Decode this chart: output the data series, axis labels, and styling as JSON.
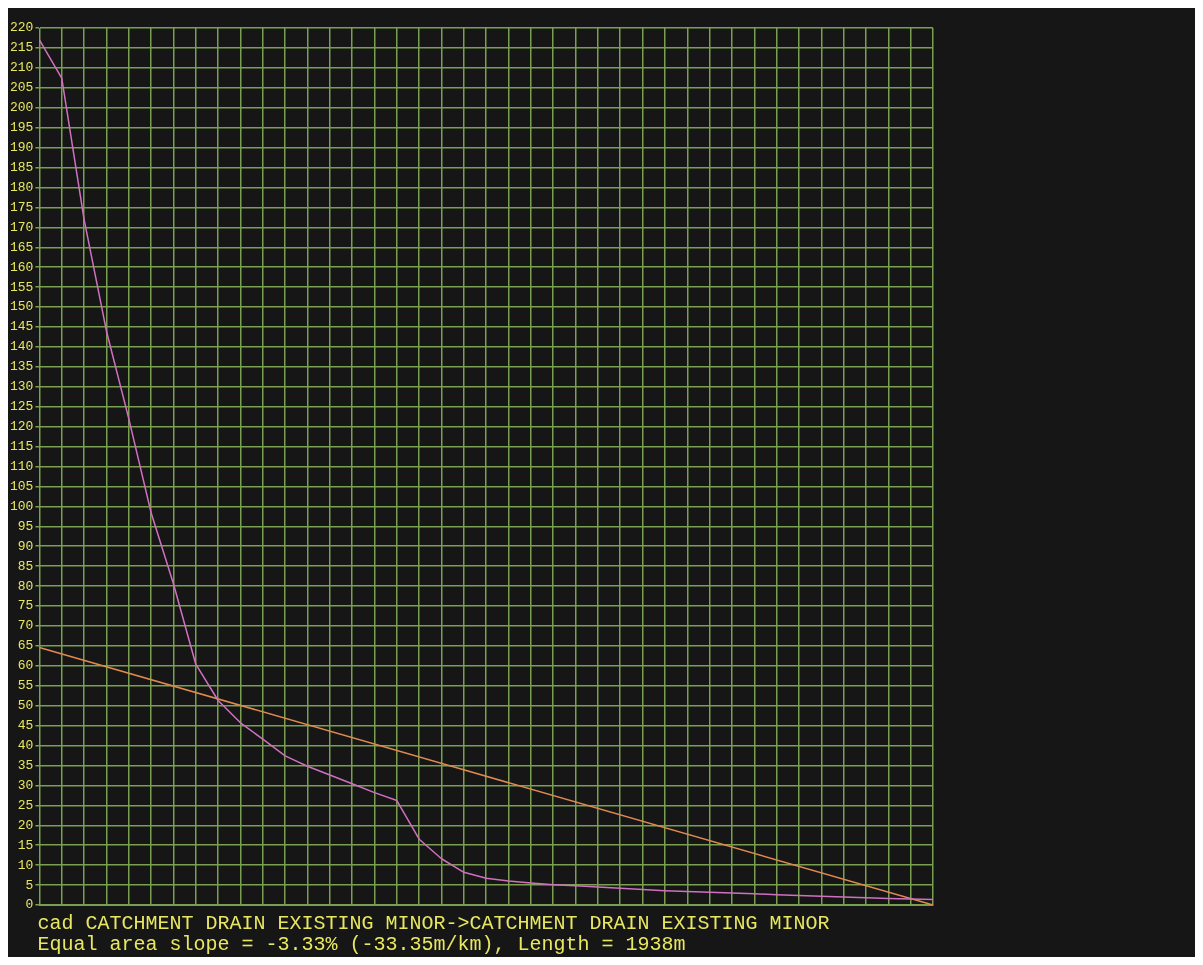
{
  "chart_data": {
    "type": "line",
    "categories": [
      null,
      null,
      null,
      null,
      null,
      null,
      null,
      null,
      null,
      null,
      null,
      null,
      null,
      null,
      null,
      null,
      null,
      null,
      null,
      null,
      null,
      null,
      null,
      null,
      null,
      null,
      null,
      null,
      null,
      null,
      null,
      null,
      null,
      null,
      null,
      null,
      null,
      null,
      null,
      null,
      null
    ],
    "series": [
      {
        "color": "#d070c0",
        "values": [
          217,
          207.4,
          172,
          144,
          122,
          98.4,
          80.6,
          60.4,
          51.3,
          45.7,
          41.6,
          37.4,
          34.8,
          32.6,
          30.4,
          28.2,
          26.2,
          16.5,
          11.6,
          8.2,
          6.7,
          6.0,
          5.5,
          5.1,
          4.8,
          4.5,
          4.2,
          3.9,
          3.6,
          3.4,
          3.2,
          3.0,
          2.8,
          2.6,
          2.4,
          2.2,
          2.0,
          1.8,
          1.6,
          1.5,
          1.4
        ]
      },
      {
        "type": "line",
        "color": "#e08a50",
        "values": [
          64.6,
          null,
          null,
          null,
          null,
          null,
          null,
          null,
          null,
          null,
          null,
          null,
          null,
          null,
          null,
          null,
          null,
          null,
          null,
          null,
          null,
          null,
          null,
          null,
          null,
          null,
          null,
          null,
          null,
          null,
          null,
          null,
          null,
          null,
          null,
          null,
          null,
          null,
          null,
          null,
          0
        ]
      }
    ],
    "ylim": [
      0,
      220
    ],
    "yticks": [
      0,
      5,
      10,
      15,
      20,
      25,
      30,
      35,
      40,
      45,
      50,
      55,
      60,
      65,
      70,
      75,
      80,
      85,
      90,
      95,
      100,
      105,
      110,
      115,
      120,
      125,
      130,
      135,
      140,
      145,
      150,
      155,
      160,
      165,
      170,
      175,
      180,
      185,
      190,
      195,
      200,
      205,
      210,
      215,
      220
    ],
    "grid": true,
    "tick_labels": "y",
    "legend": false,
    "marker": "none",
    "line_style": "solid",
    "annotations": [
      "cad CATCHMENT DRAIN EXISTING MINOR->CATCHMENT DRAIN EXISTING MINOR",
      "Equal area slope = -3.33% (-33.35m/km), Length = 1938m"
    ]
  }
}
